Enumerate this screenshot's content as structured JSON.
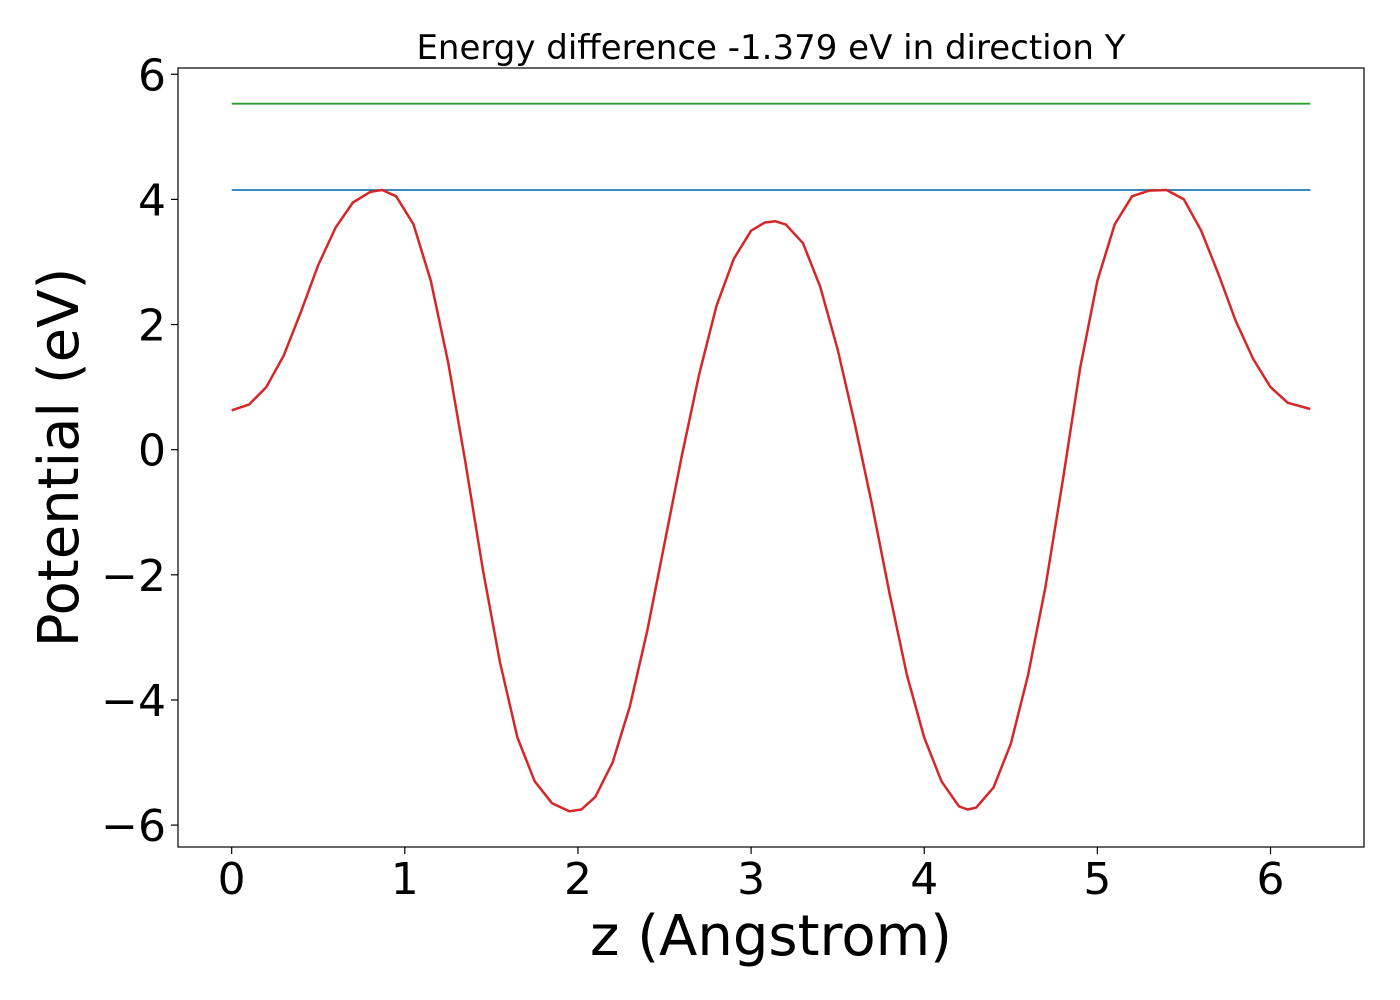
{
  "chart_data": {
    "type": "line",
    "title": "Energy difference -1.379 eV in direction Y",
    "xlabel": "z (Angstrom)",
    "ylabel": "Potential (eV)",
    "xlim": [
      -0.31,
      6.54
    ],
    "ylim": [
      -6.35,
      6.1
    ],
    "xticks": [
      0,
      1,
      2,
      3,
      4,
      5,
      6
    ],
    "xtick_labels": [
      "0",
      "1",
      "2",
      "3",
      "4",
      "5",
      "6"
    ],
    "yticks": [
      -6,
      -4,
      -2,
      0,
      2,
      4,
      6
    ],
    "ytick_labels": [
      "−6",
      "−4",
      "−2",
      "0",
      "2",
      "4",
      "6"
    ],
    "grid": false,
    "series": [
      {
        "color": "#2ca02c",
        "x": [
          0,
          6.23
        ],
        "y": [
          5.53,
          5.53
        ]
      },
      {
        "color": "#1f77b4",
        "x": [
          0,
          6.23
        ],
        "y": [
          4.15,
          4.15
        ]
      },
      {
        "color": "#d62728",
        "x": [
          0,
          0.1,
          0.2,
          0.3,
          0.4,
          0.5,
          0.6,
          0.7,
          0.8,
          0.87,
          0.95,
          1.05,
          1.15,
          1.25,
          1.35,
          1.45,
          1.55,
          1.65,
          1.75,
          1.85,
          1.95,
          2.02,
          2.1,
          2.2,
          2.3,
          2.4,
          2.5,
          2.6,
          2.7,
          2.8,
          2.9,
          3.0,
          3.08,
          3.14,
          3.2,
          3.3,
          3.4,
          3.5,
          3.6,
          3.7,
          3.8,
          3.9,
          4.0,
          4.1,
          4.2,
          4.25,
          4.3,
          4.4,
          4.5,
          4.6,
          4.7,
          4.8,
          4.9,
          5.0,
          5.1,
          5.2,
          5.3,
          5.4,
          5.5,
          5.6,
          5.7,
          5.8,
          5.9,
          6.0,
          6.1,
          6.23
        ],
        "y": [
          0.63,
          0.72,
          1.0,
          1.5,
          2.2,
          2.95,
          3.55,
          3.95,
          4.12,
          4.15,
          4.05,
          3.6,
          2.7,
          1.4,
          -0.2,
          -1.9,
          -3.4,
          -4.6,
          -5.3,
          -5.65,
          -5.78,
          -5.75,
          -5.55,
          -5.0,
          -4.1,
          -2.9,
          -1.5,
          -0.1,
          1.2,
          2.3,
          3.05,
          3.5,
          3.63,
          3.65,
          3.6,
          3.3,
          2.6,
          1.6,
          0.4,
          -0.9,
          -2.3,
          -3.6,
          -4.6,
          -5.3,
          -5.7,
          -5.75,
          -5.72,
          -5.4,
          -4.7,
          -3.6,
          -2.2,
          -0.5,
          1.3,
          2.7,
          3.6,
          4.05,
          4.14,
          4.15,
          4.0,
          3.5,
          2.8,
          2.05,
          1.45,
          1.0,
          0.75,
          0.65
        ]
      }
    ]
  }
}
